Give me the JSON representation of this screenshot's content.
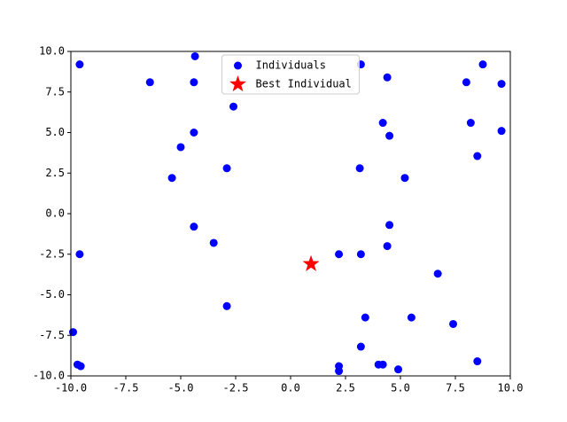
{
  "chart_data": {
    "type": "scatter",
    "series": [
      {
        "name": "Individuals",
        "color": "#0000ff",
        "marker": "circle",
        "x": [
          -9.6,
          -4.35,
          -6.4,
          -4.4,
          -2.6,
          -4.4,
          -5.0,
          -2.9,
          -5.4,
          -4.4,
          -3.5,
          -9.6,
          -2.9,
          -9.9,
          -9.7,
          -9.55,
          3.2,
          4.4,
          8.75,
          8.0,
          9.6,
          4.2,
          8.2,
          4.5,
          9.6,
          8.5,
          3.15,
          5.2,
          4.5,
          4.4,
          2.2,
          3.2,
          6.7,
          3.4,
          5.5,
          7.4,
          3.2,
          2.2,
          2.2,
          4.0,
          4.2,
          4.9,
          8.5
        ],
        "y": [
          9.2,
          9.7,
          8.1,
          8.1,
          6.6,
          5.0,
          4.1,
          2.8,
          2.2,
          -0.8,
          -1.8,
          -2.5,
          -5.7,
          -7.3,
          -9.3,
          -9.4,
          9.2,
          8.4,
          9.2,
          8.1,
          8.0,
          5.6,
          5.6,
          4.8,
          5.1,
          3.55,
          2.8,
          2.2,
          -0.7,
          -2.0,
          -2.5,
          -2.5,
          -3.7,
          -6.4,
          -6.4,
          -6.8,
          -8.2,
          -9.4,
          -9.7,
          -9.3,
          -9.3,
          -9.6,
          -9.1
        ]
      },
      {
        "name": "Best Individual",
        "color": "#ff0000",
        "marker": "star",
        "x": [
          0.93
        ],
        "y": [
          -3.1
        ]
      }
    ],
    "xlim": [
      -10,
      10
    ],
    "ylim": [
      -10,
      10
    ],
    "xticks": [
      {
        "value": -10,
        "label": "-10.0"
      },
      {
        "value": -7.5,
        "label": "-7.5"
      },
      {
        "value": -5,
        "label": "-5.0"
      },
      {
        "value": -2.5,
        "label": "-2.5"
      },
      {
        "value": 0,
        "label": "0.0"
      },
      {
        "value": 2.5,
        "label": "2.5"
      },
      {
        "value": 5,
        "label": "5.0"
      },
      {
        "value": 7.5,
        "label": "7.5"
      },
      {
        "value": 10,
        "label": "10.0"
      }
    ],
    "yticks": [
      {
        "value": -10,
        "label": "-10.0"
      },
      {
        "value": -7.5,
        "label": "-7.5"
      },
      {
        "value": -5,
        "label": "-5.0"
      },
      {
        "value": -2.5,
        "label": "-2.5"
      },
      {
        "value": 0,
        "label": "0.0"
      },
      {
        "value": 2.5,
        "label": "2.5"
      },
      {
        "value": 5,
        "label": "5.0"
      },
      {
        "value": 7.5,
        "label": "7.5"
      },
      {
        "value": 10,
        "label": "10.0"
      }
    ],
    "grid": false,
    "legend": "upper center"
  }
}
